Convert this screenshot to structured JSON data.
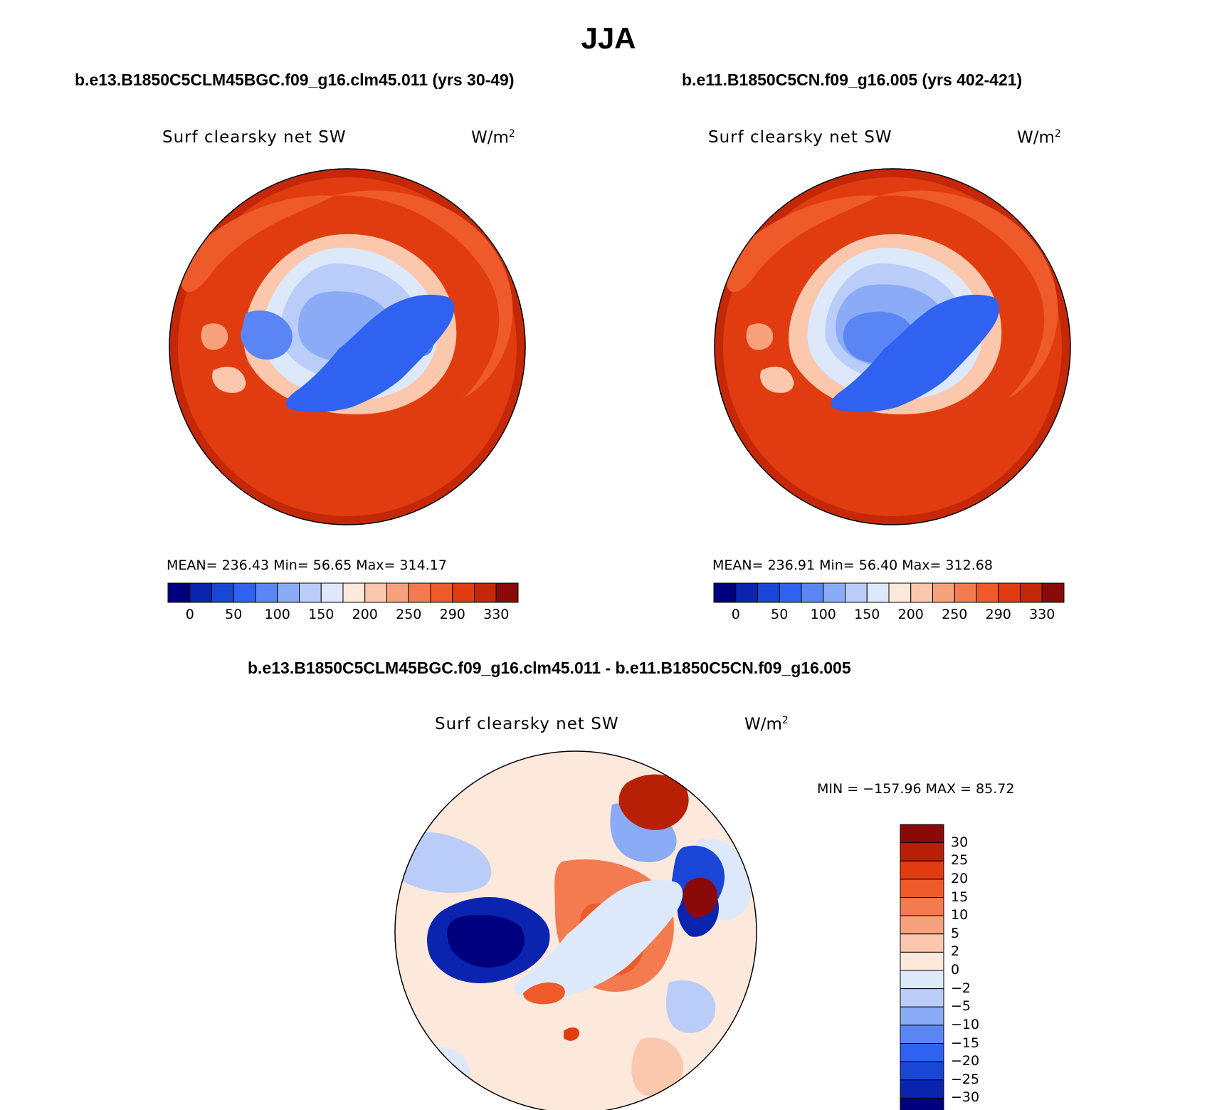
{
  "title": "JJA",
  "panels": [
    {
      "case_title": "b.e13.B1850C5CLM45BGC.f09_g16.clm45.011 (yrs 30-49)",
      "variable": "Surf clearsky net SW",
      "units": "W/m",
      "units_sup": "2",
      "stats": "MEAN= 236.43   Min=   56.65   Max= 314.17"
    },
    {
      "case_title": "b.e11.B1850C5CN.f09_g16.005 (yrs 402-421)",
      "variable": "Surf clearsky net SW",
      "units": "W/m",
      "units_sup": "2",
      "stats": "MEAN= 236.91   Min=   56.40   Max= 312.68"
    }
  ],
  "diff_panel": {
    "case_title": "b.e13.B1850C5CLM45BGC.f09_g16.clm45.011 - b.e11.B1850C5CN.f09_g16.005",
    "variable": "Surf clearsky net SW",
    "units": "W/m",
    "units_sup": "2",
    "stats": "MIN = −157.96 MAX =  85.72"
  },
  "colorbar_top": {
    "ticks": [
      "0",
      "50",
      "100",
      "150",
      "200",
      "250",
      "290",
      "330"
    ],
    "colors": [
      "#00007f",
      "#0a24b0",
      "#1a46d8",
      "#2f62f0",
      "#5a86f5",
      "#8aacf7",
      "#b9cdf8",
      "#dde8fb",
      "#fde8dc",
      "#fbc8ad",
      "#f8a27d",
      "#f47a50",
      "#ee5a2a",
      "#e03c10",
      "#c42808",
      "#8a0a0a"
    ]
  },
  "colorbar_diff": {
    "labels": [
      "30",
      "25",
      "20",
      "15",
      "10",
      "5",
      "2",
      "0",
      "−2",
      "−5",
      "−10",
      "−15",
      "−20",
      "−25",
      "−30"
    ],
    "colors": [
      "#8a0a0a",
      "#b82005",
      "#e03c10",
      "#ee5a2a",
      "#f47a50",
      "#f8a27d",
      "#fbc8ad",
      "#fde8dc",
      "#dde8fb",
      "#b9cdf8",
      "#8aacf7",
      "#5a86f5",
      "#2f62f0",
      "#1a46d8",
      "#0a24b0",
      "#00007f"
    ]
  }
}
